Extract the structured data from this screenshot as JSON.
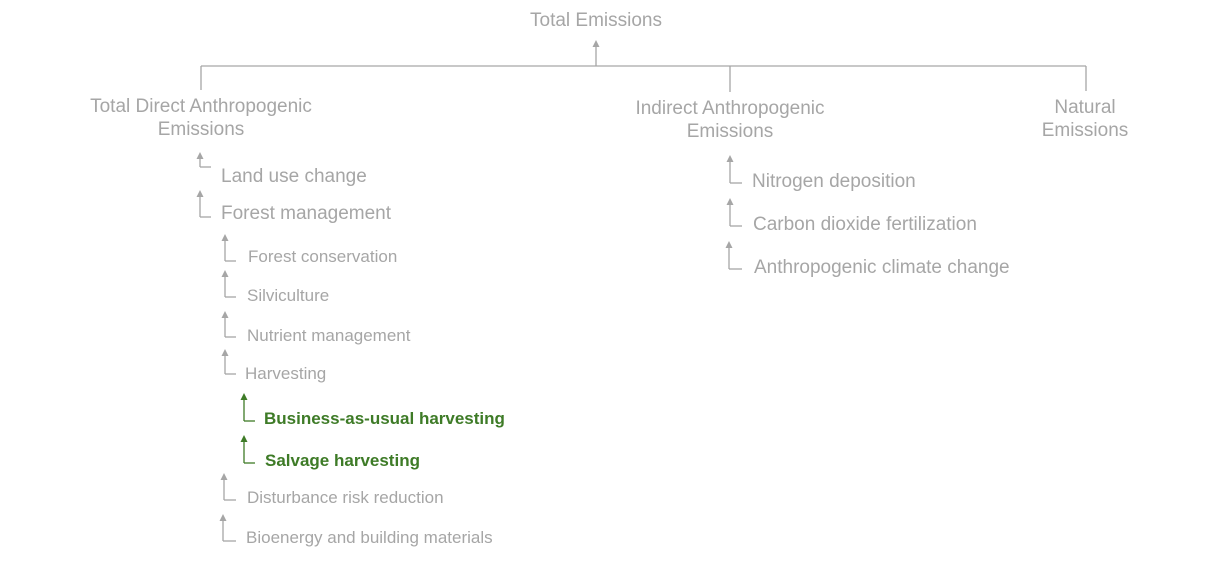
{
  "colors": {
    "connector": "#a6a6a6",
    "text": "#a6a6a6",
    "highlight": "#3e7b27"
  },
  "root": {
    "label": "Total Emissions"
  },
  "branches": {
    "direct": {
      "line1": "Total Direct Anthropogenic",
      "line2": "Emissions",
      "children": {
        "land_use": "Land use change",
        "forest_mgmt": "Forest management"
      },
      "forest_children": {
        "conservation": "Forest conservation",
        "silviculture": "Silviculture",
        "nutrient": "Nutrient management",
        "harvesting": "Harvesting",
        "disturbance": "Disturbance risk reduction",
        "bioenergy": "Bioenergy and building materials"
      },
      "harvesting_children": {
        "bau": "Business-as-usual harvesting",
        "salvage": "Salvage harvesting"
      }
    },
    "indirect": {
      "line1": "Indirect Anthropogenic",
      "line2": "Emissions",
      "children": {
        "nitrogen": "Nitrogen deposition",
        "co2": "Carbon dioxide fertilization",
        "climate": "Anthropogenic climate change"
      }
    },
    "natural": {
      "line1": "Natural",
      "line2": "Emissions"
    }
  }
}
